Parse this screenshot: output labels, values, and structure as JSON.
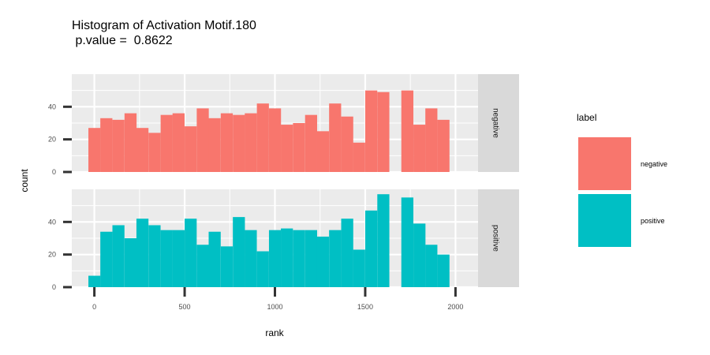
{
  "chart_data": {
    "type": "bar",
    "title": "Histogram of Activation Motif.180",
    "subtitle": " p.value =  0.8622",
    "xlabel": "rank",
    "ylabel": "count",
    "xlim": [
      -125,
      2125
    ],
    "ylim": [
      0,
      60
    ],
    "x_ticks": [
      0,
      500,
      1000,
      1500,
      2000
    ],
    "y_ticks": [
      0,
      20,
      40
    ],
    "bin_width": 66.7,
    "grid": true,
    "legend_position": "right",
    "legend_title": "label",
    "series": [
      {
        "name": "negative",
        "color": "#F8766D",
        "bin_starts": [
          -33,
          33,
          100,
          167,
          233,
          300,
          367,
          433,
          500,
          567,
          633,
          700,
          767,
          833,
          900,
          967,
          1033,
          1100,
          1167,
          1233,
          1300,
          1367,
          1433,
          1500,
          1567,
          1633,
          1700,
          1767,
          1833,
          1900,
          1967
        ],
        "values": [
          27,
          33,
          32,
          36,
          27,
          24,
          35,
          36,
          28,
          39,
          33,
          36,
          35,
          36,
          42,
          39,
          29,
          30,
          35,
          25,
          42,
          34,
          18,
          50,
          49,
          0,
          50,
          29,
          39,
          32,
          0
        ]
      },
      {
        "name": "positive",
        "color": "#00BFC4",
        "bin_starts": [
          -33,
          33,
          100,
          167,
          233,
          300,
          367,
          433,
          500,
          567,
          633,
          700,
          767,
          833,
          900,
          967,
          1033,
          1100,
          1167,
          1233,
          1300,
          1367,
          1433,
          1500,
          1567,
          1633,
          1700,
          1767,
          1833,
          1900,
          1967
        ],
        "values": [
          7,
          34,
          38,
          30,
          42,
          38,
          35,
          35,
          42,
          26,
          34,
          25,
          43,
          35,
          22,
          35,
          36,
          35,
          35,
          31,
          35,
          42,
          23,
          47,
          57,
          0,
          55,
          39,
          26,
          20,
          0
        ]
      }
    ]
  }
}
